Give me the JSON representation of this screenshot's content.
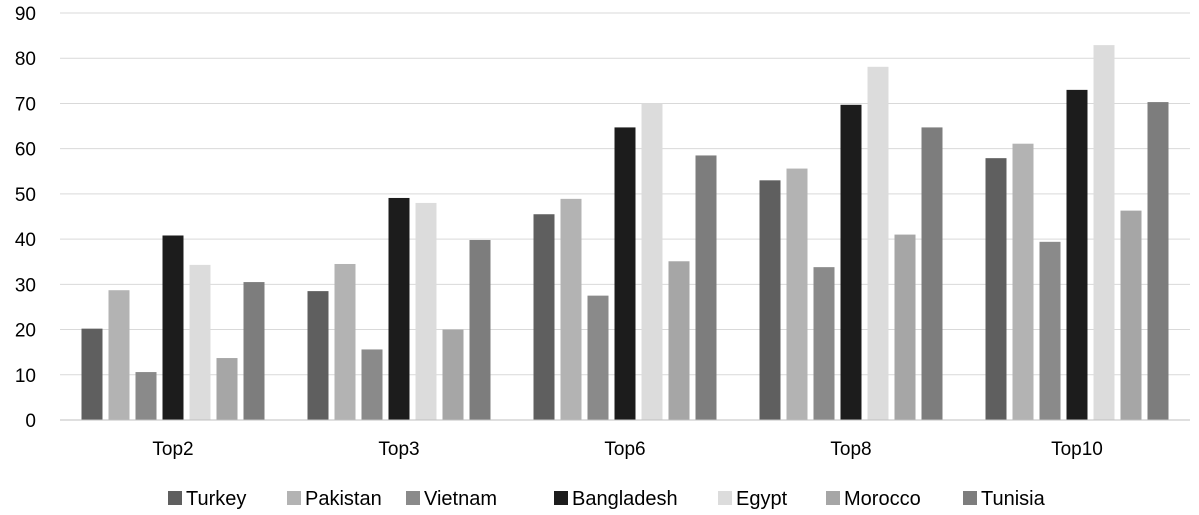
{
  "chart_data": {
    "type": "bar",
    "categories": [
      "Top2",
      "Top3",
      "Top6",
      "Top8",
      "Top10"
    ],
    "series": [
      {
        "name": "Turkey",
        "color": "#5f5f5f",
        "values": [
          20.2,
          28.5,
          45.5,
          53.0,
          57.9
        ]
      },
      {
        "name": "Pakistan",
        "color": "#b3b3b3",
        "values": [
          28.7,
          34.5,
          48.9,
          55.6,
          61.1
        ]
      },
      {
        "name": "Vietnam",
        "color": "#8a8a8a",
        "values": [
          10.6,
          15.6,
          27.5,
          33.8,
          39.4
        ]
      },
      {
        "name": "Bangladesh",
        "color": "#1c1c1c",
        "values": [
          40.8,
          49.1,
          64.7,
          69.7,
          73.0
        ]
      },
      {
        "name": "Egypt",
        "color": "#dcdcdc",
        "values": [
          34.3,
          48.0,
          70.0,
          78.1,
          82.9
        ]
      },
      {
        "name": "Morocco",
        "color": "#a6a6a6",
        "values": [
          13.7,
          20.0,
          35.1,
          41.0,
          46.3
        ]
      },
      {
        "name": "Tunisia",
        "color": "#7d7d7d",
        "values": [
          30.5,
          39.8,
          58.5,
          64.7,
          70.3
        ]
      }
    ],
    "y_ticks": [
      "0",
      "10",
      "20",
      "30",
      "40",
      "50",
      "60",
      "70",
      "80",
      "90"
    ],
    "ylim": [
      0,
      90
    ],
    "grid": true,
    "legend_position": "bottom",
    "title": "",
    "xlabel": "",
    "ylabel": ""
  }
}
